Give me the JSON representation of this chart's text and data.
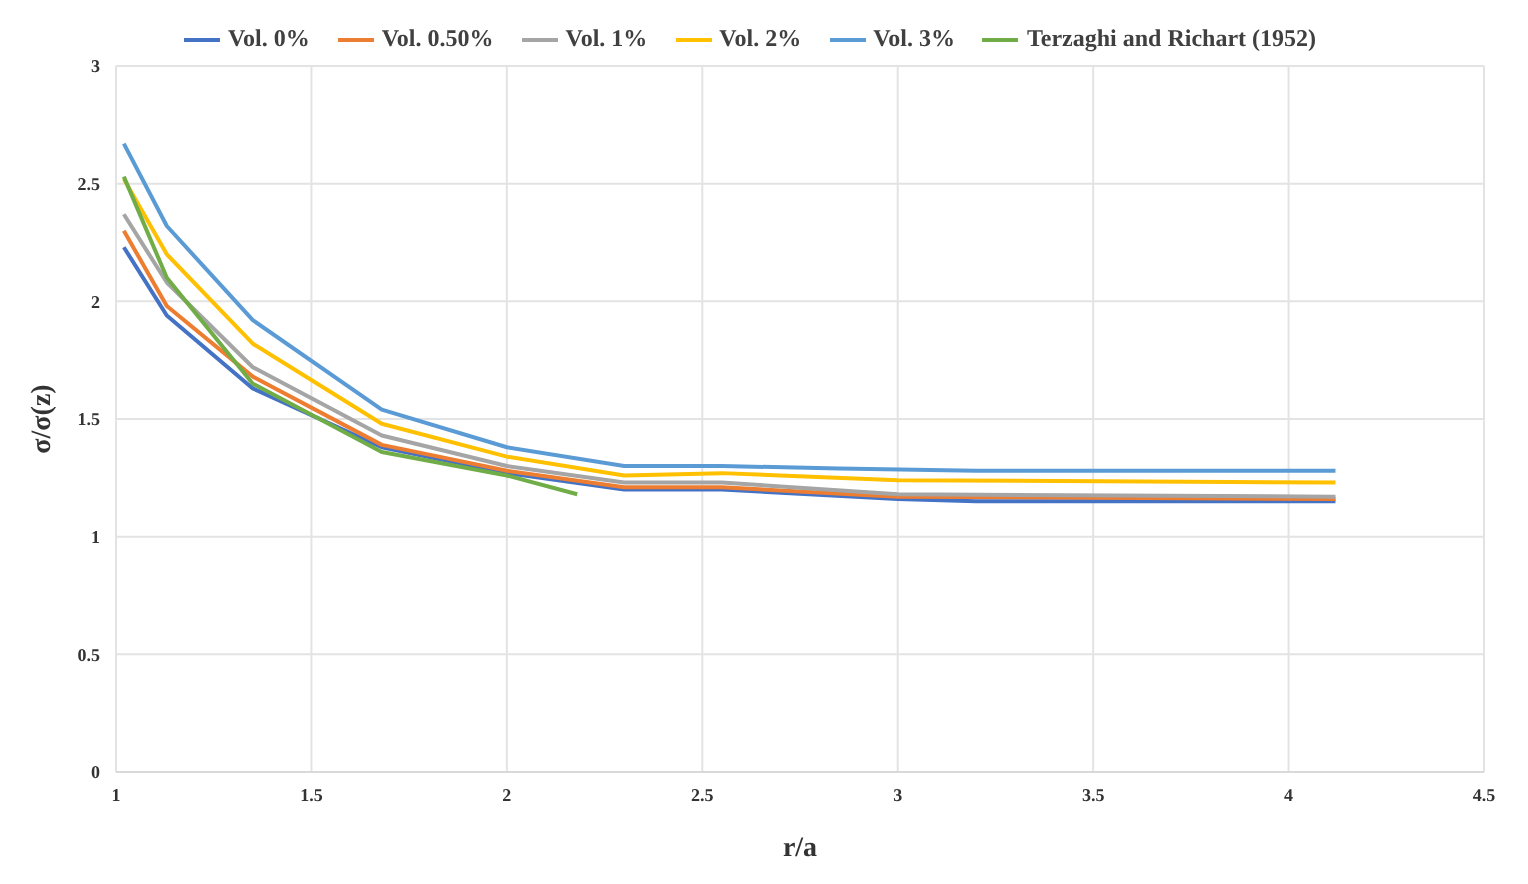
{
  "chart_data": {
    "type": "line",
    "xlabel": "r/a",
    "ylabel": "σ/σ(z)",
    "xlim": [
      1,
      4.5
    ],
    "xticks": [
      1,
      1.5,
      2,
      2.5,
      3,
      3.5,
      4,
      4.5
    ],
    "ylim": [
      0,
      3
    ],
    "yticks": [
      0,
      0.5,
      1,
      1.5,
      2,
      2.5,
      3
    ],
    "grid": true,
    "legend": "top",
    "marker": "none",
    "line_style": "solid",
    "series": [
      {
        "name": "Vol. 0%",
        "color": "#4472c4",
        "x": [
          1.02,
          1.13,
          1.35,
          1.68,
          2.0,
          2.3,
          2.55,
          3.0,
          3.2,
          4.12
        ],
        "values": [
          2.23,
          1.94,
          1.63,
          1.38,
          1.27,
          1.2,
          1.2,
          1.16,
          1.15,
          1.15
        ]
      },
      {
        "name": "Vol. 0.50%",
        "color": "#ed7d31",
        "x": [
          1.02,
          1.13,
          1.35,
          1.68,
          2.0,
          2.3,
          2.55,
          3.0,
          4.12
        ],
        "values": [
          2.3,
          1.98,
          1.68,
          1.39,
          1.28,
          1.21,
          1.21,
          1.17,
          1.16
        ]
      },
      {
        "name": "Vol. 1%",
        "color": "#a5a5a5",
        "x": [
          1.02,
          1.13,
          1.35,
          1.68,
          2.0,
          2.3,
          2.55,
          3.0,
          4.12
        ],
        "values": [
          2.37,
          2.08,
          1.72,
          1.43,
          1.3,
          1.23,
          1.23,
          1.18,
          1.17
        ]
      },
      {
        "name": "Vol. 2%",
        "color": "#ffc000",
        "x": [
          1.02,
          1.13,
          1.35,
          1.68,
          2.0,
          2.3,
          2.55,
          3.0,
          4.12
        ],
        "values": [
          2.52,
          2.2,
          1.82,
          1.48,
          1.34,
          1.26,
          1.27,
          1.24,
          1.23
        ]
      },
      {
        "name": "Vol. 3%",
        "color": "#5b9bd5",
        "x": [
          1.02,
          1.13,
          1.35,
          1.68,
          2.0,
          2.3,
          2.55,
          2.85,
          3.2,
          4.12
        ],
        "values": [
          2.67,
          2.32,
          1.92,
          1.54,
          1.38,
          1.3,
          1.3,
          1.29,
          1.28,
          1.28
        ]
      },
      {
        "name": "Terzaghi and Richart (1952)",
        "color": "#70ad47",
        "x": [
          1.02,
          1.13,
          1.35,
          1.68,
          2.0,
          2.18
        ],
        "values": [
          2.53,
          2.1,
          1.65,
          1.36,
          1.26,
          1.18
        ]
      }
    ]
  }
}
